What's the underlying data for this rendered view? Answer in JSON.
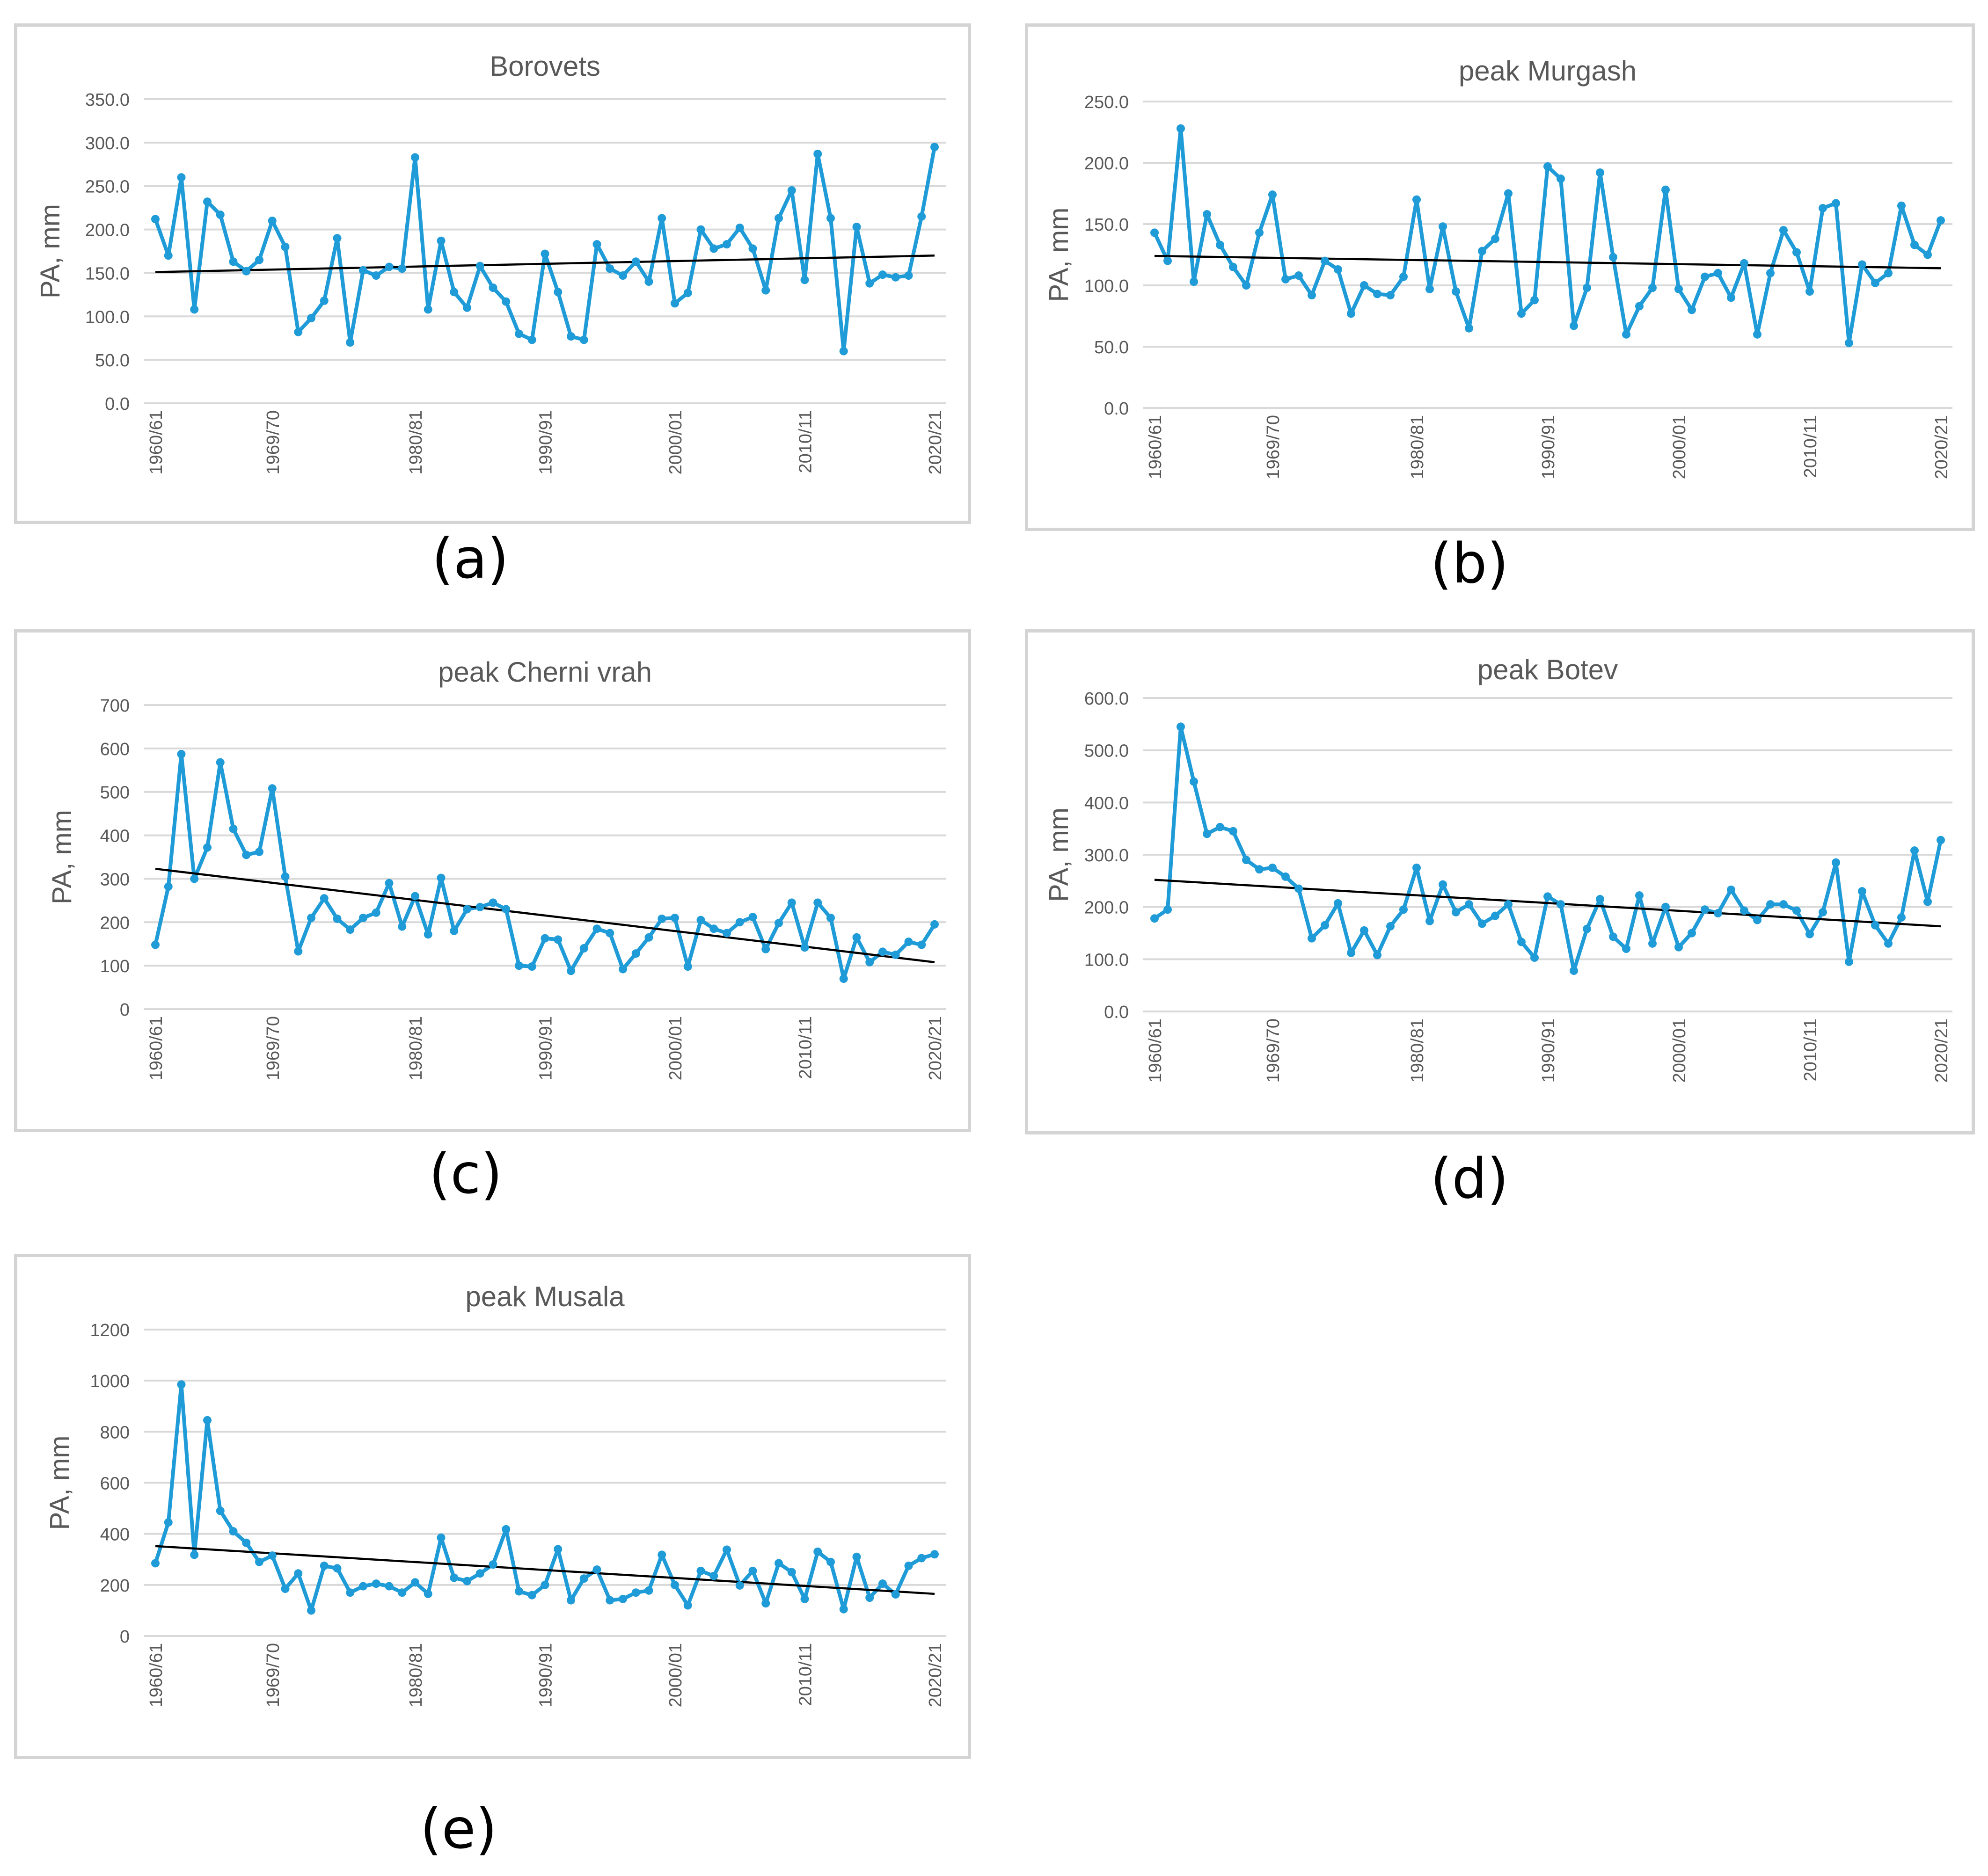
{
  "colors": {
    "series": "#1f9bd7",
    "trend": "#000000",
    "grid": "#d9d9d9",
    "text": "#595959"
  },
  "ylabel": "PA, mm",
  "xticks": [
    "1960/61",
    "1969/70",
    "1980/81",
    "1990/91",
    "2000/01",
    "2010/11",
    "2020/21"
  ],
  "charts": [
    {
      "caption": "(a)",
      "chart_data": {
        "type": "line",
        "title": "Borovets",
        "ylabel": "PA, mm",
        "x_first": "1960/61",
        "x_last": "2020/21",
        "xticks": [
          "1960/61",
          "1969/70",
          "1980/81",
          "1990/91",
          "2000/01",
          "2010/11",
          "2020/21"
        ],
        "ylim": [
          0,
          350
        ],
        "ystep": 50,
        "ydecimals": 1,
        "grid": true,
        "legend": "none",
        "values": [
          212,
          170,
          260,
          108,
          232,
          217,
          163,
          152,
          165,
          210,
          180,
          82,
          98,
          118,
          190,
          70,
          153,
          147,
          157,
          155,
          283,
          108,
          187,
          128,
          110,
          158,
          133,
          117,
          80,
          73,
          172,
          128,
          77,
          73,
          183,
          155,
          147,
          163,
          140,
          213,
          115,
          127,
          200,
          178,
          183,
          202,
          178,
          130,
          213,
          245,
          142,
          287,
          213,
          60,
          203,
          138,
          148,
          145,
          147,
          215,
          295
        ],
        "trend": [
          151,
          170
        ]
      }
    },
    {
      "caption": "(b)",
      "chart_data": {
        "type": "line",
        "title": "peak Murgash",
        "ylabel": "PA, mm",
        "x_first": "1960/61",
        "x_last": "2020/21",
        "xticks": [
          "1960/61",
          "1969/70",
          "1980/81",
          "1990/91",
          "2000/01",
          "2010/11",
          "2020/21"
        ],
        "ylim": [
          0,
          250
        ],
        "ystep": 50,
        "ydecimals": 1,
        "grid": true,
        "legend": "none",
        "values": [
          143,
          120,
          228,
          103,
          158,
          133,
          115,
          100,
          143,
          174,
          105,
          108,
          92,
          120,
          113,
          77,
          100,
          93,
          92,
          107,
          170,
          97,
          148,
          95,
          65,
          128,
          138,
          175,
          77,
          88,
          197,
          187,
          67,
          98,
          192,
          123,
          60,
          83,
          98,
          178,
          97,
          80,
          107,
          110,
          90,
          118,
          60,
          110,
          145,
          127,
          95,
          163,
          167,
          53,
          117,
          102,
          110,
          165,
          133,
          125,
          153
        ],
        "trend": [
          124,
          114
        ]
      }
    },
    {
      "caption": "(c)",
      "chart_data": {
        "type": "line",
        "title": "peak Cherni vrah",
        "ylabel": "PA, mm",
        "x_first": "1960/61",
        "x_last": "2020/21",
        "xticks": [
          "1960/61",
          "1969/70",
          "1980/81",
          "1990/91",
          "2000/01",
          "2010/11",
          "2020/21"
        ],
        "ylim": [
          0,
          700
        ],
        "ystep": 100,
        "ydecimals": 0,
        "grid": true,
        "legend": "none",
        "values": [
          148,
          282,
          587,
          300,
          372,
          568,
          415,
          355,
          362,
          508,
          305,
          133,
          210,
          255,
          208,
          183,
          210,
          222,
          290,
          190,
          260,
          172,
          302,
          180,
          230,
          235,
          245,
          230,
          100,
          98,
          163,
          160,
          88,
          140,
          185,
          175,
          92,
          128,
          165,
          208,
          210,
          98,
          205,
          185,
          175,
          200,
          212,
          138,
          198,
          245,
          142,
          245,
          210,
          70,
          165,
          108,
          132,
          125,
          155,
          148,
          195
        ],
        "trend": [
          323,
          108
        ]
      }
    },
    {
      "caption": "(d)",
      "chart_data": {
        "type": "line",
        "title": "peak Botev",
        "ylabel": "PA, mm",
        "x_first": "1960/61",
        "x_last": "2020/21",
        "xticks": [
          "1960/61",
          "1969/70",
          "1980/81",
          "1990/91",
          "2000/01",
          "2010/11",
          "2020/21"
        ],
        "ylim": [
          0,
          600
        ],
        "ystep": 100,
        "ydecimals": 1,
        "grid": true,
        "legend": "none",
        "values": [
          178,
          195,
          545,
          440,
          340,
          353,
          345,
          290,
          272,
          275,
          258,
          235,
          140,
          165,
          207,
          112,
          155,
          108,
          163,
          195,
          275,
          173,
          243,
          190,
          205,
          168,
          183,
          205,
          133,
          103,
          220,
          205,
          78,
          158,
          215,
          143,
          120,
          222,
          130,
          200,
          123,
          150,
          195,
          188,
          233,
          193,
          175,
          205,
          205,
          193,
          148,
          190,
          285,
          95,
          230,
          165,
          130,
          180,
          308,
          210,
          328
        ],
        "trend": [
          252,
          163
        ]
      }
    },
    {
      "caption": "(e)",
      "chart_data": {
        "type": "line",
        "title": "peak Musala",
        "ylabel": "PA, mm",
        "x_first": "1960/61",
        "x_last": "2020/21",
        "xticks": [
          "1960/61",
          "1969/70",
          "1980/81",
          "1990/91",
          "2000/01",
          "2010/11",
          "2020/21"
        ],
        "ylim": [
          0,
          1200
        ],
        "ystep": 200,
        "ydecimals": 0,
        "grid": true,
        "legend": "none",
        "values": [
          285,
          445,
          985,
          318,
          845,
          490,
          410,
          365,
          290,
          315,
          185,
          245,
          100,
          275,
          265,
          170,
          195,
          205,
          195,
          170,
          210,
          165,
          385,
          228,
          215,
          245,
          280,
          418,
          175,
          160,
          200,
          340,
          140,
          225,
          260,
          140,
          145,
          170,
          178,
          318,
          200,
          120,
          255,
          235,
          338,
          198,
          255,
          128,
          285,
          250,
          145,
          330,
          290,
          105,
          310,
          150,
          205,
          163,
          275,
          305,
          320
        ],
        "trend": [
          352,
          165
        ]
      }
    }
  ]
}
